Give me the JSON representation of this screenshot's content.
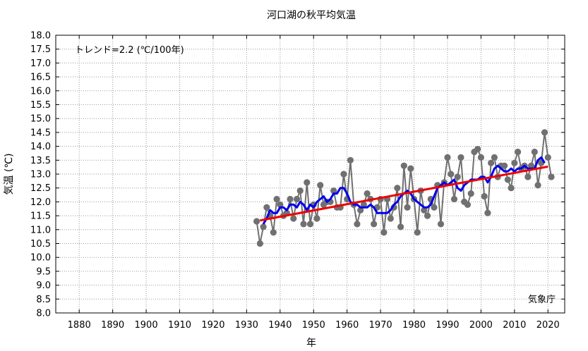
{
  "chart_data": {
    "type": "line",
    "title": "河口湖の秋平均気温",
    "xlabel": "年",
    "ylabel": "気温 (℃)",
    "trend_label": "トレンド=2.2 (℃/100年)",
    "source_label": "気象庁",
    "xlim": [
      1873,
      2025
    ],
    "ylim": [
      8.0,
      18.0
    ],
    "x_ticks": [
      1880,
      1890,
      1900,
      1910,
      1920,
      1930,
      1940,
      1950,
      1960,
      1970,
      1980,
      1990,
      2000,
      2010,
      2020
    ],
    "y_ticks": [
      "8.0",
      "8.5",
      "9.0",
      "9.5",
      "10.0",
      "10.5",
      "11.0",
      "11.5",
      "12.0",
      "12.5",
      "13.0",
      "13.5",
      "14.0",
      "14.5",
      "15.0",
      "15.5",
      "16.0",
      "16.5",
      "17.0",
      "17.5",
      "18.0"
    ],
    "grid": true,
    "colors": {
      "annual": "#707070",
      "moving_average": "#0000ee",
      "trend": "#ee0000"
    },
    "series": [
      {
        "key": "annual",
        "x": [
          1933,
          1934,
          1935,
          1936,
          1937,
          1938,
          1939,
          1940,
          1941,
          1942,
          1943,
          1944,
          1945,
          1946,
          1947,
          1948,
          1949,
          1950,
          1951,
          1952,
          1953,
          1954,
          1955,
          1956,
          1957,
          1958,
          1959,
          1960,
          1961,
          1962,
          1963,
          1964,
          1965,
          1966,
          1967,
          1968,
          1969,
          1970,
          1971,
          1972,
          1973,
          1974,
          1975,
          1976,
          1977,
          1978,
          1979,
          1980,
          1981,
          1982,
          1983,
          1984,
          1985,
          1986,
          1987,
          1988,
          1989,
          1990,
          1991,
          1992,
          1993,
          1994,
          1995,
          1996,
          1997,
          1998,
          1999,
          2000,
          2001,
          2002,
          2003,
          2004,
          2005,
          2006,
          2007,
          2008,
          2009,
          2010,
          2011,
          2012,
          2013,
          2014,
          2015,
          2016,
          2017,
          2018,
          2019,
          2020,
          2021
        ],
        "y": [
          11.3,
          10.5,
          11.1,
          11.8,
          11.5,
          10.9,
          12.1,
          11.9,
          11.5,
          11.6,
          12.1,
          11.4,
          12.1,
          12.4,
          11.2,
          12.7,
          11.2,
          11.9,
          11.4,
          12.6,
          11.9,
          12.0,
          12.0,
          12.4,
          11.8,
          11.8,
          13.0,
          12.1,
          13.5,
          11.9,
          11.2,
          11.7,
          11.9,
          12.3,
          12.1,
          11.2,
          11.8,
          12.1,
          10.9,
          12.1,
          11.4,
          11.8,
          12.5,
          11.1,
          13.3,
          11.8,
          13.2,
          12.1,
          10.9,
          12.4,
          11.7,
          11.5,
          12.1,
          11.8,
          12.6,
          11.2,
          12.7,
          13.6,
          13.0,
          12.1,
          12.9,
          13.6,
          12.0,
          11.9,
          12.3,
          13.8,
          13.9,
          13.6,
          12.2,
          11.6,
          13.4,
          13.6,
          12.9,
          13.3,
          13.3,
          12.8,
          12.5,
          13.4,
          13.8,
          13.2,
          13.3,
          12.9,
          13.3,
          13.8,
          12.6,
          13.4,
          14.5,
          13.6,
          12.9
        ]
      },
      {
        "key": "moving_average",
        "x": [
          1935,
          1936,
          1937,
          1938,
          1939,
          1940,
          1941,
          1942,
          1943,
          1944,
          1945,
          1946,
          1947,
          1948,
          1949,
          1950,
          1951,
          1952,
          1953,
          1954,
          1955,
          1956,
          1957,
          1958,
          1959,
          1960,
          1961,
          1962,
          1963,
          1964,
          1965,
          1966,
          1967,
          1968,
          1969,
          1970,
          1971,
          1972,
          1973,
          1974,
          1975,
          1976,
          1977,
          1978,
          1979,
          1980,
          1981,
          1982,
          1983,
          1984,
          1985,
          1986,
          1987,
          1988,
          1989,
          1990,
          1991,
          1992,
          1993,
          1994,
          1995,
          1996,
          1997,
          1998,
          1999,
          2000,
          2001,
          2002,
          2003,
          2004,
          2005,
          2006,
          2007,
          2008,
          2009,
          2010,
          2011,
          2012,
          2013,
          2014,
          2015,
          2016,
          2017,
          2018,
          2019
        ],
        "y": [
          11.2,
          11.4,
          11.7,
          11.6,
          11.6,
          11.8,
          11.8,
          11.7,
          11.9,
          11.9,
          11.8,
          12.0,
          11.9,
          11.7,
          11.9,
          11.8,
          12.0,
          12.1,
          12.2,
          12.0,
          12.1,
          12.3,
          12.3,
          12.5,
          12.5,
          12.3,
          12.0,
          11.9,
          11.9,
          11.8,
          11.8,
          11.8,
          11.9,
          11.8,
          11.6,
          11.6,
          11.6,
          11.6,
          11.7,
          11.9,
          12.0,
          12.2,
          12.3,
          12.4,
          12.3,
          12.1,
          12.0,
          11.9,
          11.8,
          11.8,
          11.9,
          12.2,
          12.5,
          12.6,
          12.7,
          12.6,
          12.7,
          12.8,
          12.5,
          12.4,
          12.6,
          12.7,
          12.8,
          12.8,
          12.8,
          12.9,
          12.9,
          12.7,
          12.9,
          13.2,
          13.3,
          13.2,
          13.1,
          13.1,
          13.2,
          13.1,
          13.2,
          13.2,
          13.3,
          13.2,
          13.2,
          13.2,
          13.5,
          13.6,
          13.4
        ]
      },
      {
        "key": "trend",
        "x": [
          1934,
          2020
        ],
        "y": [
          11.33,
          13.27
        ]
      }
    ]
  }
}
